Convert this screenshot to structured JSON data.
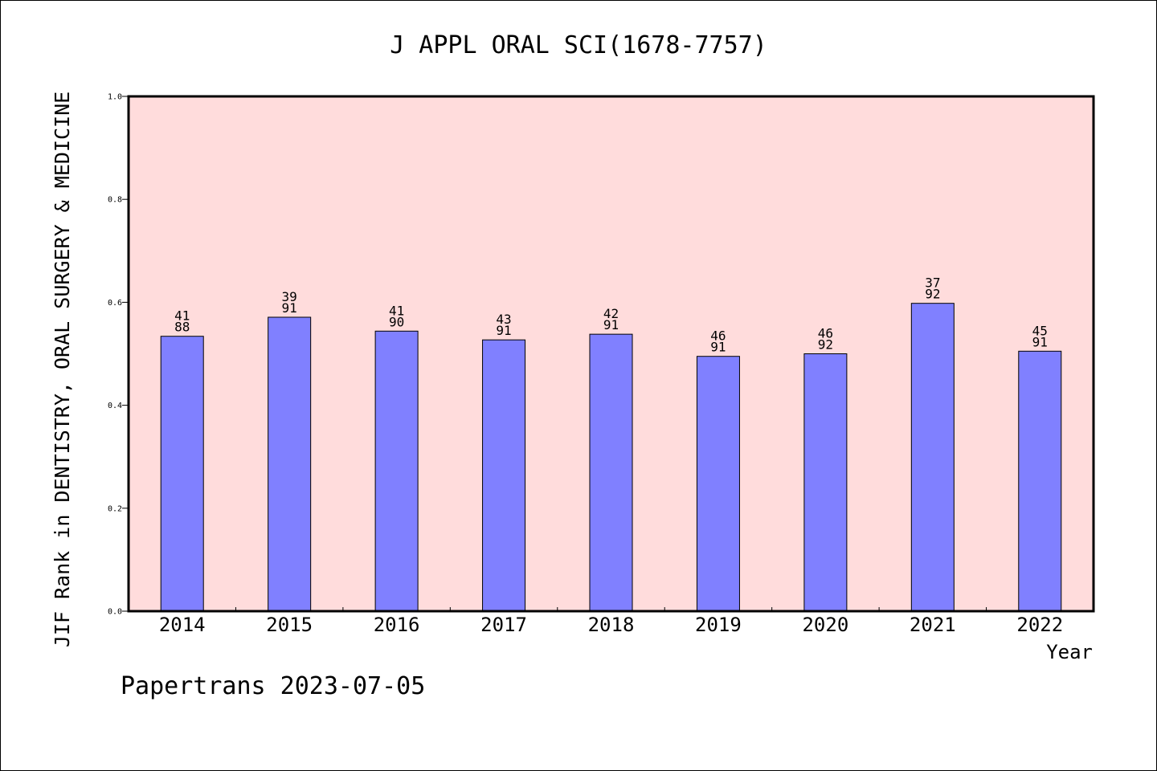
{
  "chart_data": {
    "type": "bar",
    "title": "J APPL ORAL SCI(1678-7757)",
    "xlabel": "Year",
    "ylabel": "JIF Rank in DENTISTRY, ORAL SURGERY & MEDICINE",
    "ylim": [
      0,
      1.0
    ],
    "yticks": [
      "0.0",
      "0.2",
      "0.4",
      "0.6",
      "0.8",
      "1.0"
    ],
    "grid": false,
    "categories": [
      "2014",
      "2015",
      "2016",
      "2017",
      "2018",
      "2019",
      "2020",
      "2021",
      "2022"
    ],
    "series": [
      {
        "values": [
          0.534,
          0.571,
          0.544,
          0.527,
          0.538,
          0.495,
          0.5,
          0.598,
          0.505
        ],
        "rank": [
          "41",
          "39",
          "41",
          "43",
          "42",
          "46",
          "46",
          "37",
          "45"
        ],
        "total": [
          "88",
          "91",
          "90",
          "91",
          "91",
          "91",
          "92",
          "92",
          "91"
        ]
      }
    ],
    "colors": {
      "plot_background": "#FFDCDC",
      "bar_fill": "#8080FF",
      "bar_stroke": "#000000",
      "axis": "#000000"
    }
  },
  "footer": {
    "text": "Papertrans 2023-07-05"
  }
}
